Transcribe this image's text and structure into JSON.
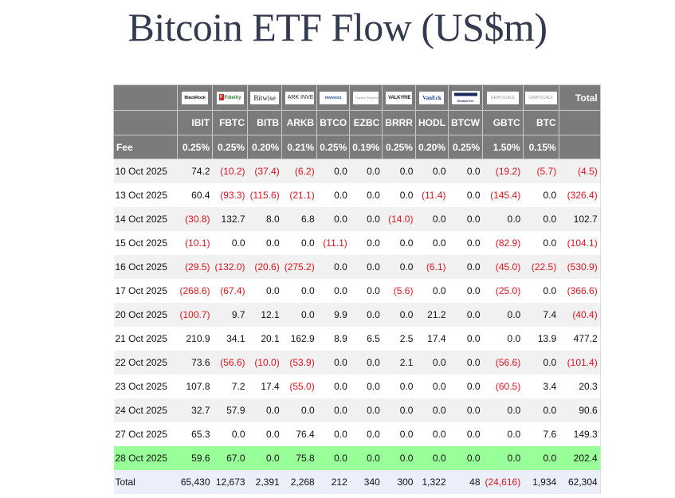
{
  "page": {
    "title": "Bitcoin ETF Flow (US$m)"
  },
  "table": {
    "colors": {
      "header_bg": "#7b7b7b",
      "header_text": "#ffffff",
      "negative": "#e0141e",
      "latest_row_bg": "#99ff99",
      "total_row_bg": "#eaeff9",
      "zebra_bg": "#f1f1f1"
    },
    "issuers": [
      {
        "ticker": "IBIT",
        "issuer_logo": "BlackRock",
        "fee": "0.25%"
      },
      {
        "ticker": "FBTC",
        "issuer_logo": "Fidelity",
        "fee": "0.25%"
      },
      {
        "ticker": "BITB",
        "issuer_logo": "Bitwise",
        "fee": "0.20%"
      },
      {
        "ticker": "ARKB",
        "issuer_logo": "ARK INVEST",
        "fee": "0.21%"
      },
      {
        "ticker": "BTCO",
        "issuer_logo": "Invesco",
        "fee": "0.25%"
      },
      {
        "ticker": "EZBC",
        "issuer_logo": "Franklin Templeton",
        "fee": "0.19%"
      },
      {
        "ticker": "BRRR",
        "issuer_logo": "VALKYRIE",
        "fee": "0.25%"
      },
      {
        "ticker": "HODL",
        "issuer_logo": "VanEck",
        "fee": "0.20%"
      },
      {
        "ticker": "BTCW",
        "issuer_logo": "WisdomTree",
        "fee": "0.25%"
      },
      {
        "ticker": "GBTC",
        "issuer_logo": "GRAYSCALE",
        "fee": "1.50%"
      },
      {
        "ticker": "BTC",
        "issuer_logo": "GRAYSCALE",
        "fee": "0.15%"
      }
    ],
    "total_header": "Total",
    "fee_label": "Fee",
    "rows": [
      {
        "date": "10 Oct 2025",
        "values": [
          "74.2",
          "(10.2)",
          "(37.4)",
          "(6.2)",
          "0.0",
          "0.0",
          "0.0",
          "0.0",
          "0.0",
          "(19.2)",
          "(5.7)",
          "(4.5)"
        ]
      },
      {
        "date": "13 Oct 2025",
        "values": [
          "60.4",
          "(93.3)",
          "(115.6)",
          "(21.1)",
          "0.0",
          "0.0",
          "0.0",
          "(11.4)",
          "0.0",
          "(145.4)",
          "0.0",
          "(326.4)"
        ]
      },
      {
        "date": "14 Oct 2025",
        "values": [
          "(30.8)",
          "132.7",
          "8.0",
          "6.8",
          "0.0",
          "0.0",
          "(14.0)",
          "0.0",
          "0.0",
          "0.0",
          "0.0",
          "102.7"
        ]
      },
      {
        "date": "15 Oct 2025",
        "values": [
          "(10.1)",
          "0.0",
          "0.0",
          "0.0",
          "(11.1)",
          "0.0",
          "0.0",
          "0.0",
          "0.0",
          "(82.9)",
          "0.0",
          "(104.1)"
        ]
      },
      {
        "date": "16 Oct 2025",
        "values": [
          "(29.5)",
          "(132.0)",
          "(20.6)",
          "(275.2)",
          "0.0",
          "0.0",
          "0.0",
          "(6.1)",
          "0.0",
          "(45.0)",
          "(22.5)",
          "(530.9)"
        ]
      },
      {
        "date": "17 Oct 2025",
        "values": [
          "(268.6)",
          "(67.4)",
          "0.0",
          "0.0",
          "0.0",
          "0.0",
          "(5.6)",
          "0.0",
          "0.0",
          "(25.0)",
          "0.0",
          "(366.6)"
        ]
      },
      {
        "date": "20 Oct 2025",
        "values": [
          "(100.7)",
          "9.7",
          "12.1",
          "0.0",
          "9.9",
          "0.0",
          "0.0",
          "21.2",
          "0.0",
          "0.0",
          "7.4",
          "(40.4)"
        ]
      },
      {
        "date": "21 Oct 2025",
        "values": [
          "210.9",
          "34.1",
          "20.1",
          "162.9",
          "8.9",
          "6.5",
          "2.5",
          "17.4",
          "0.0",
          "0.0",
          "13.9",
          "477.2"
        ]
      },
      {
        "date": "22 Oct 2025",
        "values": [
          "73.6",
          "(56.6)",
          "(10.0)",
          "(53.9)",
          "0.0",
          "0.0",
          "2.1",
          "0.0",
          "0.0",
          "(56.6)",
          "0.0",
          "(101.4)"
        ]
      },
      {
        "date": "23 Oct 2025",
        "values": [
          "107.8",
          "7.2",
          "17.4",
          "(55.0)",
          "0.0",
          "0.0",
          "0.0",
          "0.0",
          "0.0",
          "(60.5)",
          "3.4",
          "20.3"
        ]
      },
      {
        "date": "24 Oct 2025",
        "values": [
          "32.7",
          "57.9",
          "0.0",
          "0.0",
          "0.0",
          "0.0",
          "0.0",
          "0.0",
          "0.0",
          "0.0",
          "0.0",
          "90.6"
        ]
      },
      {
        "date": "27 Oct 2025",
        "values": [
          "65.3",
          "0.0",
          "0.0",
          "76.4",
          "0.0",
          "0.0",
          "0.0",
          "0.0",
          "0.0",
          "0.0",
          "7.6",
          "149.3"
        ]
      },
      {
        "date": "28 Oct 2025",
        "values": [
          "59.6",
          "67.0",
          "0.0",
          "75.8",
          "0.0",
          "0.0",
          "0.0",
          "0.0",
          "0.0",
          "0.0",
          "0.0",
          "202.4"
        ],
        "highlight": true
      }
    ],
    "total_row": {
      "label": "Total",
      "values": [
        "65,430",
        "12,673",
        "2,391",
        "2,268",
        "212",
        "340",
        "300",
        "1,322",
        "48",
        "(24,616)",
        "1,934",
        "62,304"
      ]
    }
  }
}
